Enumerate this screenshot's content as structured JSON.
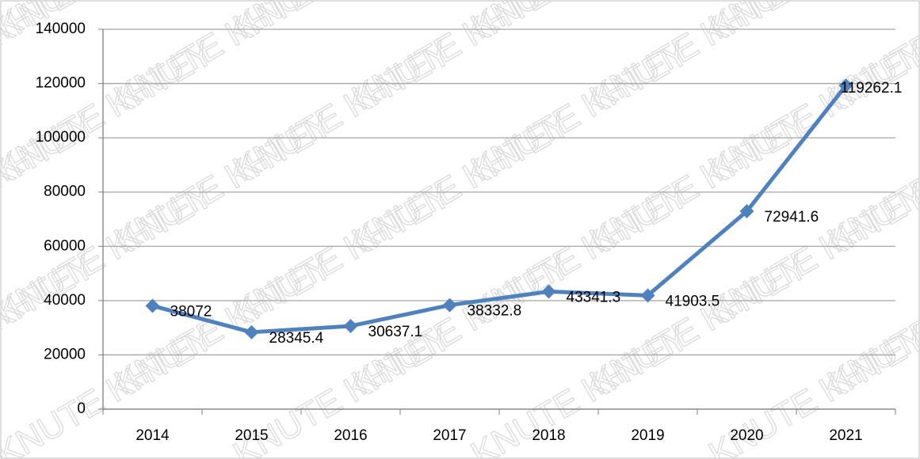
{
  "chart_data": {
    "type": "line",
    "watermark": "KNUTE KHTEY",
    "categories": [
      "2014",
      "2015",
      "2016",
      "2017",
      "2018",
      "2019",
      "2020",
      "2021"
    ],
    "series": [
      {
        "name": null,
        "color": "#4f81bd",
        "values": [
          38072,
          28345.4,
          30637.1,
          38332.8,
          43341.3,
          41903.5,
          72941.6,
          119262.1
        ]
      }
    ],
    "ylim": [
      0,
      140000
    ],
    "yticks": [
      0,
      20000,
      40000,
      60000,
      80000,
      100000,
      120000,
      140000
    ],
    "grid": true
  }
}
